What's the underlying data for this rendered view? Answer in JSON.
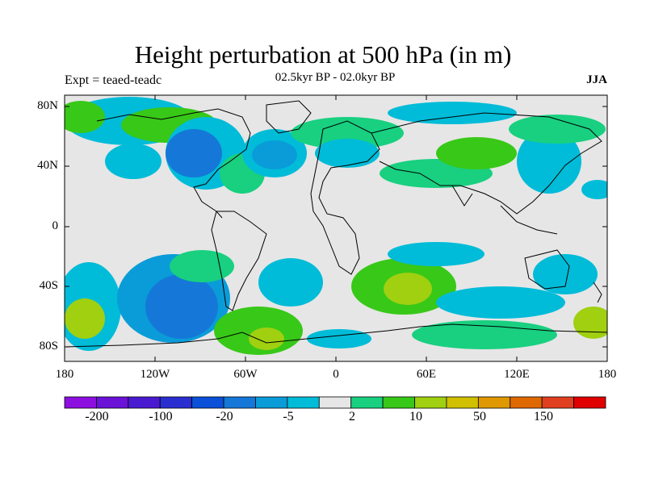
{
  "title": "Height perturbation at 500 hPa (in m)",
  "left_string": "Expt = teaed-teadc",
  "center_string": "02.5kyr BP - 02.0kyr BP",
  "right_string": "JJA",
  "lat_labels": [
    "80N",
    "40N",
    "0",
    "40S",
    "80S"
  ],
  "lon_labels": [
    "180",
    "120W",
    "60W",
    "0",
    "60E",
    "120E",
    "180"
  ],
  "colorbar": {
    "colors": [
      "#8c0fe0",
      "#6a12d8",
      "#4a1ad0",
      "#2a2ed0",
      "#0a50d8",
      "#1578d8",
      "#0a9cd8",
      "#00bcd8",
      "#e6e6e6",
      "#18d080",
      "#38c818",
      "#a0d010",
      "#d0c000",
      "#e09800",
      "#e06800",
      "#e04020",
      "#e00000"
    ],
    "labels": [
      "-200",
      "-100",
      "-20",
      "-5",
      "2",
      "10",
      "50",
      "150"
    ]
  },
  "chart_data": {
    "type": "filled-contour-map",
    "variable": "500 hPa geopotential height perturbation",
    "units": "m",
    "season": "JJA",
    "experiment": "teaed-teadc",
    "period": "02.5kyr BP - 02.0kyr BP",
    "projection": "cylindrical equidistant",
    "lon_range": [
      -180,
      180
    ],
    "lat_range": [
      -90,
      90
    ],
    "contour_levels": [
      -200,
      -150,
      -100,
      -50,
      -20,
      -10,
      -5,
      -2,
      2,
      5,
      10,
      20,
      50,
      100,
      150,
      200
    ],
    "features": [
      {
        "region": "North Pacific / Arctic",
        "sign": "positive",
        "value": 10
      },
      {
        "region": "North America / Canada",
        "sign": "negative",
        "value": -5
      },
      {
        "region": "North Atlantic",
        "sign": "negative",
        "value": -10
      },
      {
        "region": "Central Asia",
        "sign": "positive",
        "value": 10
      },
      {
        "region": "South Pacific 40S-60S",
        "sign": "negative",
        "value": -20
      },
      {
        "region": "South Atlantic / Southern Africa",
        "sign": "positive",
        "value": 20
      },
      {
        "region": "Southern Ocean 60E-180",
        "sign": "negative",
        "value": -5
      }
    ]
  }
}
